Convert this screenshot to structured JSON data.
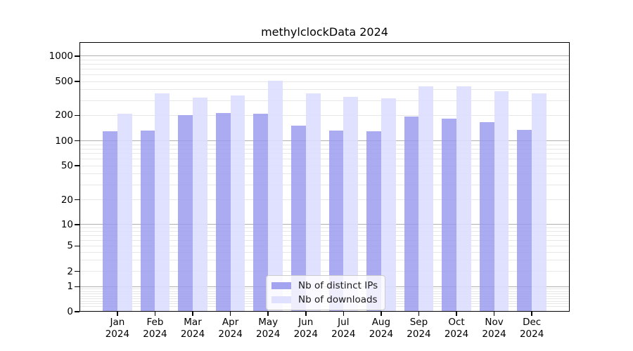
{
  "title": "methylclockData 2024",
  "chart_data": {
    "type": "bar",
    "title": "methylclockData 2024",
    "categories": [
      "Jan",
      "Feb",
      "Mar",
      "Apr",
      "May",
      "Jun",
      "Jul",
      "Aug",
      "Sep",
      "Oct",
      "Nov",
      "Dec"
    ],
    "category_year": "2024",
    "series": [
      {
        "name": "Nb of distinct IPs",
        "color": "#9999ee",
        "values": [
          130,
          133,
          200,
          215,
          210,
          151,
          132,
          130,
          193,
          183,
          166,
          134
        ]
      },
      {
        "name": "Nb of downloads",
        "color": "#ddddff",
        "values": [
          210,
          365,
          325,
          345,
          515,
          365,
          330,
          320,
          440,
          440,
          383,
          365
        ]
      }
    ],
    "xlabel": "",
    "ylabel": "",
    "yscale": "pseudo-log",
    "ylim": [
      0,
      1400
    ],
    "yticks": [
      0,
      1,
      2,
      5,
      10,
      20,
      50,
      100,
      200,
      500,
      1000
    ],
    "grid": true,
    "legend_position": "bottom-center"
  },
  "legend": {
    "items": [
      {
        "label": "Nb of distinct IPs",
        "color": "#9999ee"
      },
      {
        "label": "Nb of downloads",
        "color": "#ddddff"
      }
    ]
  }
}
